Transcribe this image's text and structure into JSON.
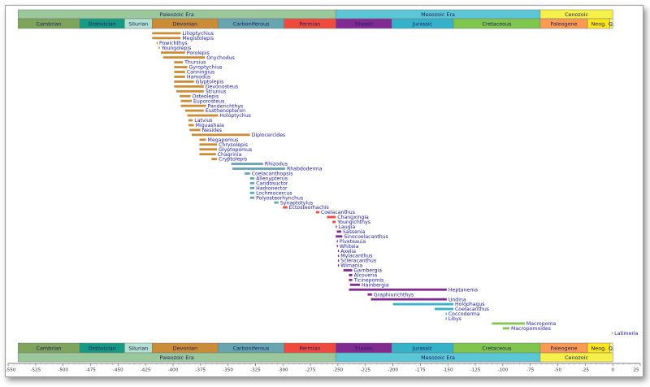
{
  "chart_data": {
    "type": "timeline",
    "title": "",
    "xlabel": "",
    "ylabel": "",
    "xlim": [
      -550,
      25
    ],
    "ticks": [
      -550,
      -525,
      -500,
      -475,
      -450,
      -425,
      -400,
      -375,
      -350,
      -325,
      -300,
      -275,
      -250,
      -225,
      -200,
      -175,
      -150,
      -125,
      -100,
      -75,
      -50,
      -25,
      0,
      25
    ],
    "eras": [
      {
        "name": "Paleozoic Era",
        "start": -541,
        "end": -252,
        "color": "#9bc89b"
      },
      {
        "name": "Mesozoic Era",
        "start": -252,
        "end": -66,
        "color": "#5bc6d6"
      },
      {
        "name": "Cenozoic",
        "start": -66,
        "end": 0,
        "color": "#f6f04a"
      }
    ],
    "periods": [
      {
        "name": "Cambrian",
        "start": -541,
        "end": -485,
        "color": "#7fa45c"
      },
      {
        "name": "Ordovician",
        "start": -485,
        "end": -444,
        "color": "#159b84"
      },
      {
        "name": "Silurian",
        "start": -444,
        "end": -419,
        "color": "#b3e1cf"
      },
      {
        "name": "Devonian",
        "start": -419,
        "end": -359,
        "color": "#cb8c37"
      },
      {
        "name": "Carboniferous",
        "start": -359,
        "end": -299,
        "color": "#67a5b1"
      },
      {
        "name": "Permian",
        "start": -299,
        "end": -252,
        "color": "#ef4a3b"
      },
      {
        "name": "Triassic",
        "start": -252,
        "end": -201,
        "color": "#812b92"
      },
      {
        "name": "Jurassic",
        "start": -201,
        "end": -145,
        "color": "#34b2c9"
      },
      {
        "name": "Cretaceous",
        "start": -145,
        "end": -66,
        "color": "#7fc64e"
      },
      {
        "name": "Paleogene",
        "start": -66,
        "end": -23,
        "color": "#fd9a52"
      },
      {
        "name": "Neog.",
        "start": -23,
        "end": -2.6,
        "color": "#ffe619"
      },
      {
        "name": "Q.",
        "start": -2.6,
        "end": 0,
        "color": "#f9f97f"
      }
    ],
    "taxa": [
      {
        "name": "Lilioptychius",
        "start": -419,
        "end": -393,
        "color": "#cb8c37"
      },
      {
        "name": "Megistolepis",
        "start": -419,
        "end": -393,
        "color": "#cb8c37"
      },
      {
        "name": "Powichthys",
        "start": -415,
        "end": -414,
        "color": "#cb8c37"
      },
      {
        "name": "Youngolepis",
        "start": -413,
        "end": -412,
        "color": "#cb8c37"
      },
      {
        "name": "Porolepis",
        "start": -411,
        "end": -389,
        "color": "#cb8c37"
      },
      {
        "name": "Onychodus",
        "start": -409,
        "end": -371,
        "color": "#cb8c37"
      },
      {
        "name": "Thursius",
        "start": -399,
        "end": -391,
        "color": "#cb8c37"
      },
      {
        "name": "Gyroptychius",
        "start": -399,
        "end": -387,
        "color": "#cb8c37"
      },
      {
        "name": "Canningius",
        "start": -399,
        "end": -389,
        "color": "#cb8c37"
      },
      {
        "name": "Hamodus",
        "start": -399,
        "end": -389,
        "color": "#cb8c37"
      },
      {
        "name": "Glyptolepis",
        "start": -399,
        "end": -381,
        "color": "#cb8c37"
      },
      {
        "name": "Devonosteus",
        "start": -399,
        "end": -372,
        "color": "#cb8c37"
      },
      {
        "name": "Strunius",
        "start": -397,
        "end": -372,
        "color": "#cb8c37"
      },
      {
        "name": "Osteolepis",
        "start": -394,
        "end": -384,
        "color": "#cb8c37"
      },
      {
        "name": "Euporosteus",
        "start": -393,
        "end": -383,
        "color": "#cb8c37"
      },
      {
        "name": "Panderichthys",
        "start": -393,
        "end": -370,
        "color": "#cb8c37"
      },
      {
        "name": "Eusthenopteron",
        "start": -389,
        "end": -372,
        "color": "#cb8c37"
      },
      {
        "name": "Holoptychus",
        "start": -387,
        "end": -359,
        "color": "#cb8c37"
      },
      {
        "name": "Latvius",
        "start": -386,
        "end": -382,
        "color": "#cb8c37"
      },
      {
        "name": "Miguashaia",
        "start": -386,
        "end": -381,
        "color": "#cb8c37"
      },
      {
        "name": "Nesides",
        "start": -385,
        "end": -375,
        "color": "#cb8c37"
      },
      {
        "name": "Diplocercides",
        "start": -383,
        "end": -330,
        "color": "#cb8c37"
      },
      {
        "name": "Megapomus",
        "start": -376,
        "end": -370,
        "color": "#cb8c37"
      },
      {
        "name": "Chrysolepis",
        "start": -376,
        "end": -360,
        "color": "#cb8c37"
      },
      {
        "name": "Glyptopomus",
        "start": -376,
        "end": -360,
        "color": "#cb8c37"
      },
      {
        "name": "Chagrinia",
        "start": -376,
        "end": -361,
        "color": "#cb8c37"
      },
      {
        "name": "Cryptolepis",
        "start": -365,
        "end": -360,
        "color": "#cb8c37"
      },
      {
        "name": "Rhizodus",
        "start": -347,
        "end": -318,
        "color": "#67a5b1"
      },
      {
        "name": "Rhabdoderma",
        "start": -346,
        "end": -298,
        "color": "#67a5b1"
      },
      {
        "name": "Coelacanthopsis",
        "start": -335,
        "end": -330,
        "color": "#67a5b1"
      },
      {
        "name": "Allenypterus",
        "start": -330,
        "end": -326,
        "color": "#67a5b1"
      },
      {
        "name": "Caridosuctor",
        "start": -330,
        "end": -326,
        "color": "#67a5b1"
      },
      {
        "name": "Hadronector",
        "start": -330,
        "end": -326,
        "color": "#67a5b1"
      },
      {
        "name": "Lochmocercus",
        "start": -330,
        "end": -326,
        "color": "#67a5b1"
      },
      {
        "name": "Polyosteorhynchus",
        "start": -330,
        "end": -326,
        "color": "#67a5b1"
      },
      {
        "name": "Synaptotylus",
        "start": -308,
        "end": -304,
        "color": "#67a5b1"
      },
      {
        "name": "Ectosteorhachis",
        "start": -300,
        "end": -296,
        "color": "#ef4a3b"
      },
      {
        "name": "Coelacanthus",
        "start": -270,
        "end": -267,
        "color": "#ef4a3b"
      },
      {
        "name": "Changxingia",
        "start": -260,
        "end": -252,
        "color": "#ef4a3b"
      },
      {
        "name": "Youngichthys",
        "start": -255,
        "end": -252,
        "color": "#ef4a3b"
      },
      {
        "name": "Laugia",
        "start": -252,
        "end": -251,
        "color": "#812b92"
      },
      {
        "name": "Sassenia",
        "start": -251,
        "end": -247,
        "color": "#812b92"
      },
      {
        "name": "Sinocoelacanthus",
        "start": -252,
        "end": -246,
        "color": "#812b92"
      },
      {
        "name": "Piveteauia",
        "start": -251,
        "end": -250,
        "color": "#812b92"
      },
      {
        "name": "Whiteia",
        "start": -251,
        "end": -250,
        "color": "#812b92"
      },
      {
        "name": "Axelia",
        "start": -250,
        "end": -249,
        "color": "#812b92"
      },
      {
        "name": "Mylacanthus",
        "start": -250,
        "end": -249,
        "color": "#812b92"
      },
      {
        "name": "Scleracanthus",
        "start": -250,
        "end": -249,
        "color": "#812b92"
      },
      {
        "name": "Wimania",
        "start": -250,
        "end": -249,
        "color": "#812b92"
      },
      {
        "name": "Garnbergia",
        "start": -245,
        "end": -237,
        "color": "#812b92"
      },
      {
        "name": "Alcoveria",
        "start": -240,
        "end": -237,
        "color": "#812b92"
      },
      {
        "name": "Ticinepomis",
        "start": -240,
        "end": -237,
        "color": "#812b92"
      },
      {
        "name": "Hainbergia",
        "start": -239,
        "end": -230,
        "color": "#812b92"
      },
      {
        "name": "Heptanema",
        "start": -240,
        "end": -151,
        "color": "#812b92"
      },
      {
        "name": "Graphiurichthys",
        "start": -223,
        "end": -219,
        "color": "#812b92"
      },
      {
        "name": "Undina",
        "start": -220,
        "end": -151,
        "color": "#812b92"
      },
      {
        "name": "Holophagus",
        "start": -200,
        "end": -145,
        "color": "#34b2c9"
      },
      {
        "name": "Coelacanthus",
        "start": -162,
        "end": -145,
        "color": "#34b2c9"
      },
      {
        "name": "Coccoderma",
        "start": -152,
        "end": -151,
        "color": "#34b2c9"
      },
      {
        "name": "Libys",
        "start": -152,
        "end": -151,
        "color": "#34b2c9"
      },
      {
        "name": "Macropoma",
        "start": -110,
        "end": -80,
        "color": "#7fc64e"
      },
      {
        "name": "Macropomoides",
        "start": -100,
        "end": -94,
        "color": "#7fc64e"
      },
      {
        "name": "Latimeria",
        "start": -1,
        "end": 0,
        "color": "#7fc64e"
      }
    ]
  }
}
